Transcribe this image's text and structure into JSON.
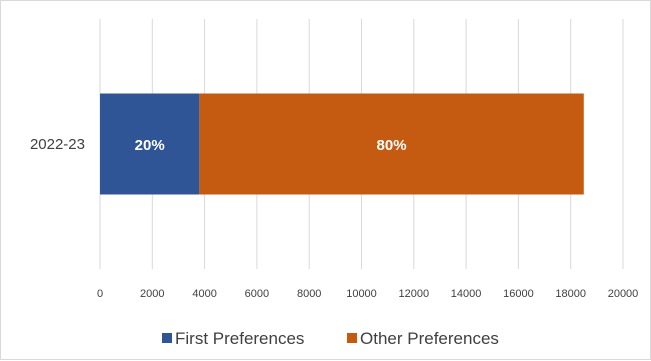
{
  "chart_data": {
    "type": "bar",
    "orientation": "horizontal",
    "stacked": true,
    "title": "",
    "xlabel": "",
    "ylabel": "",
    "categories": [
      "2022-23"
    ],
    "xlim": [
      0,
      20000
    ],
    "x_ticks": [
      0,
      2000,
      4000,
      6000,
      8000,
      10000,
      12000,
      14000,
      16000,
      18000,
      20000
    ],
    "grid": "vertical",
    "legend_position": "bottom",
    "series": [
      {
        "name": "First Preferences",
        "color": "#2f5597",
        "values": [
          3800
        ],
        "labels": [
          "20%"
        ]
      },
      {
        "name": "Other Preferences",
        "color": "#c55a11",
        "values": [
          14700
        ],
        "labels": [
          "80%"
        ]
      }
    ]
  }
}
